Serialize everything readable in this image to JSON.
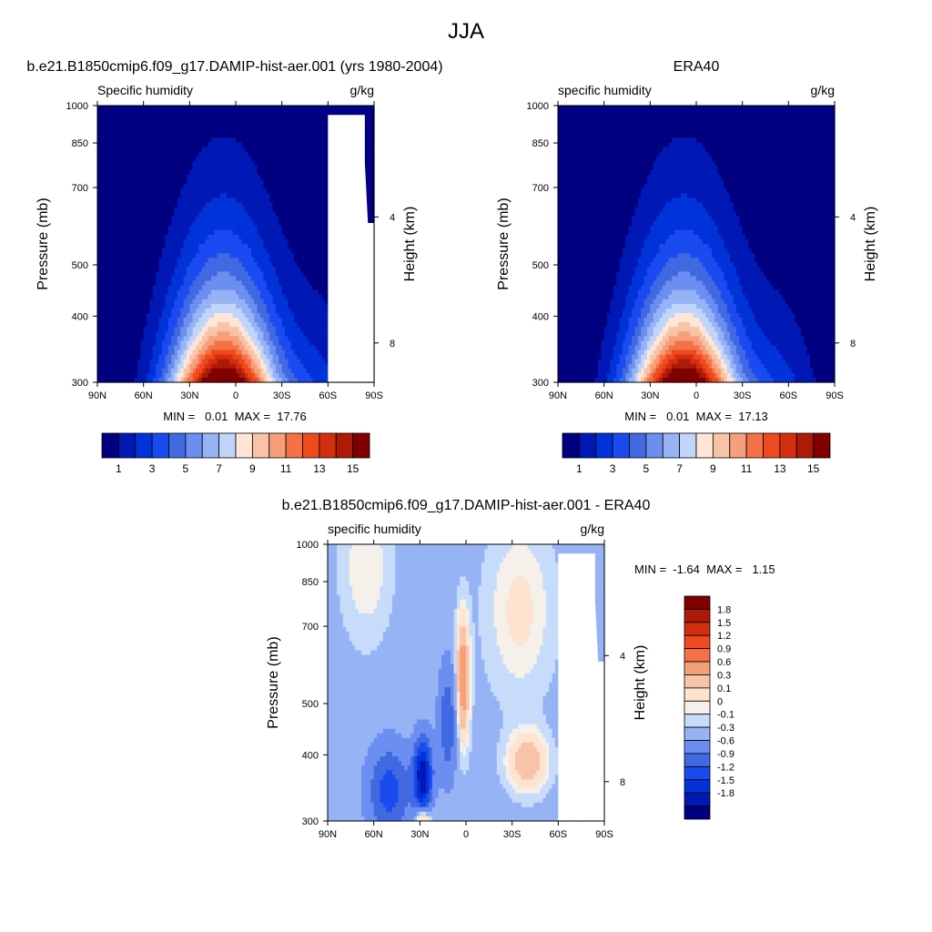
{
  "figure": {
    "title": "JJA"
  },
  "colors": {
    "base_palette": [
      "#000080",
      "#0018b4",
      "#0033d9",
      "#1a4bf0",
      "#4169e1",
      "#6b8ef0",
      "#96b3f5",
      "#c1d5fa",
      "#fde6d8",
      "#f8c4a8",
      "#f5a07a",
      "#f57248",
      "#ee4a1e",
      "#d42e10",
      "#ad1a08",
      "#800000"
    ],
    "diff_palette": [
      "#000080",
      "#0018b4",
      "#0033d9",
      "#1a4bf0",
      "#4169e1",
      "#6b8ef0",
      "#96b3f5",
      "#c6dcfa",
      "#f5f0ea",
      "#fde3d0",
      "#f8c4a8",
      "#f5a07a",
      "#f57248",
      "#ee4a1e",
      "#d42e10",
      "#ad1a08",
      "#800000"
    ]
  },
  "chart_data": [
    {
      "type": "heatmap",
      "title": "b.e21.B1850cmip6.f09_g17.DAMIP-hist-aer.001 (yrs 1980-2004)",
      "left_label": "Specific humidity",
      "right_label": "g/kg",
      "xlabel": "",
      "ylabel": "Pressure (mb)",
      "ylabel_right": "Height (km)",
      "x_ticks": [
        "90N",
        "60N",
        "30N",
        "0",
        "30S",
        "60S",
        "90S"
      ],
      "x_range": [
        90,
        -90
      ],
      "y_ticks": [
        "300",
        "400",
        "500",
        "700",
        "850",
        "1000"
      ],
      "y_range": [
        1000,
        300
      ],
      "y_scale": "log",
      "height_ticks": [
        "8",
        "4"
      ],
      "stats": "MIN =   0.01  MAX =  17.76",
      "min": 0.01,
      "max": 17.76,
      "peak_lat": 8,
      "colorbar_orientation": "horizontal",
      "colorbar_labels": [
        "1",
        "3",
        "5",
        "7",
        "9",
        "11",
        "13",
        "15"
      ],
      "colorbar_levels": [
        0,
        1,
        2,
        3,
        4,
        5,
        6,
        7,
        8,
        9,
        10,
        11,
        12,
        13,
        14,
        15
      ]
    },
    {
      "type": "heatmap",
      "title": "ERA40",
      "left_label": "specific humidity",
      "right_label": "g/kg",
      "xlabel": "",
      "ylabel": "Pressure (mb)",
      "ylabel_right": "Height (km)",
      "x_ticks": [
        "90N",
        "60N",
        "30N",
        "0",
        "30S",
        "60S",
        "90S"
      ],
      "x_range": [
        90,
        -90
      ],
      "y_ticks": [
        "300",
        "400",
        "500",
        "700",
        "850",
        "1000"
      ],
      "y_range": [
        1000,
        300
      ],
      "y_scale": "log",
      "height_ticks": [
        "8",
        "4"
      ],
      "stats": "MIN =   0.01  MAX =  17.13",
      "min": 0.01,
      "max": 17.13,
      "peak_lat": 8,
      "colorbar_orientation": "horizontal",
      "colorbar_labels": [
        "1",
        "3",
        "5",
        "7",
        "9",
        "11",
        "13",
        "15"
      ],
      "colorbar_levels": [
        0,
        1,
        2,
        3,
        4,
        5,
        6,
        7,
        8,
        9,
        10,
        11,
        12,
        13,
        14,
        15
      ]
    },
    {
      "type": "heatmap",
      "title": "b.e21.B1850cmip6.f09_g17.DAMIP-hist-aer.001 - ERA40",
      "left_label": "specific humidity",
      "right_label": "g/kg",
      "xlabel": "",
      "ylabel": "Pressure (mb)",
      "ylabel_right": "Height (km)",
      "x_ticks": [
        "90N",
        "60N",
        "30N",
        "0",
        "30S",
        "60S",
        "90S"
      ],
      "x_range": [
        90,
        -90
      ],
      "y_ticks": [
        "300",
        "400",
        "500",
        "700",
        "850",
        "1000"
      ],
      "y_range": [
        1000,
        300
      ],
      "y_scale": "log",
      "height_ticks": [
        "8",
        "4"
      ],
      "stats": "MIN =  -1.64  MAX =   1.15",
      "min": -1.64,
      "max": 1.15,
      "colorbar_orientation": "vertical",
      "colorbar_labels": [
        "1.8",
        "1.5",
        "1.2",
        "0.9",
        "0.6",
        "0.3",
        "0.1",
        "0",
        "-0.1",
        "-0.3",
        "-0.6",
        "-0.9",
        "-1.2",
        "-1.5",
        "-1.8"
      ],
      "colorbar_levels": [
        -1.8,
        -1.5,
        -1.2,
        -0.9,
        -0.6,
        -0.3,
        -0.1,
        0,
        0.1,
        0.3,
        0.6,
        0.9,
        1.2,
        1.5,
        1.8
      ]
    }
  ]
}
